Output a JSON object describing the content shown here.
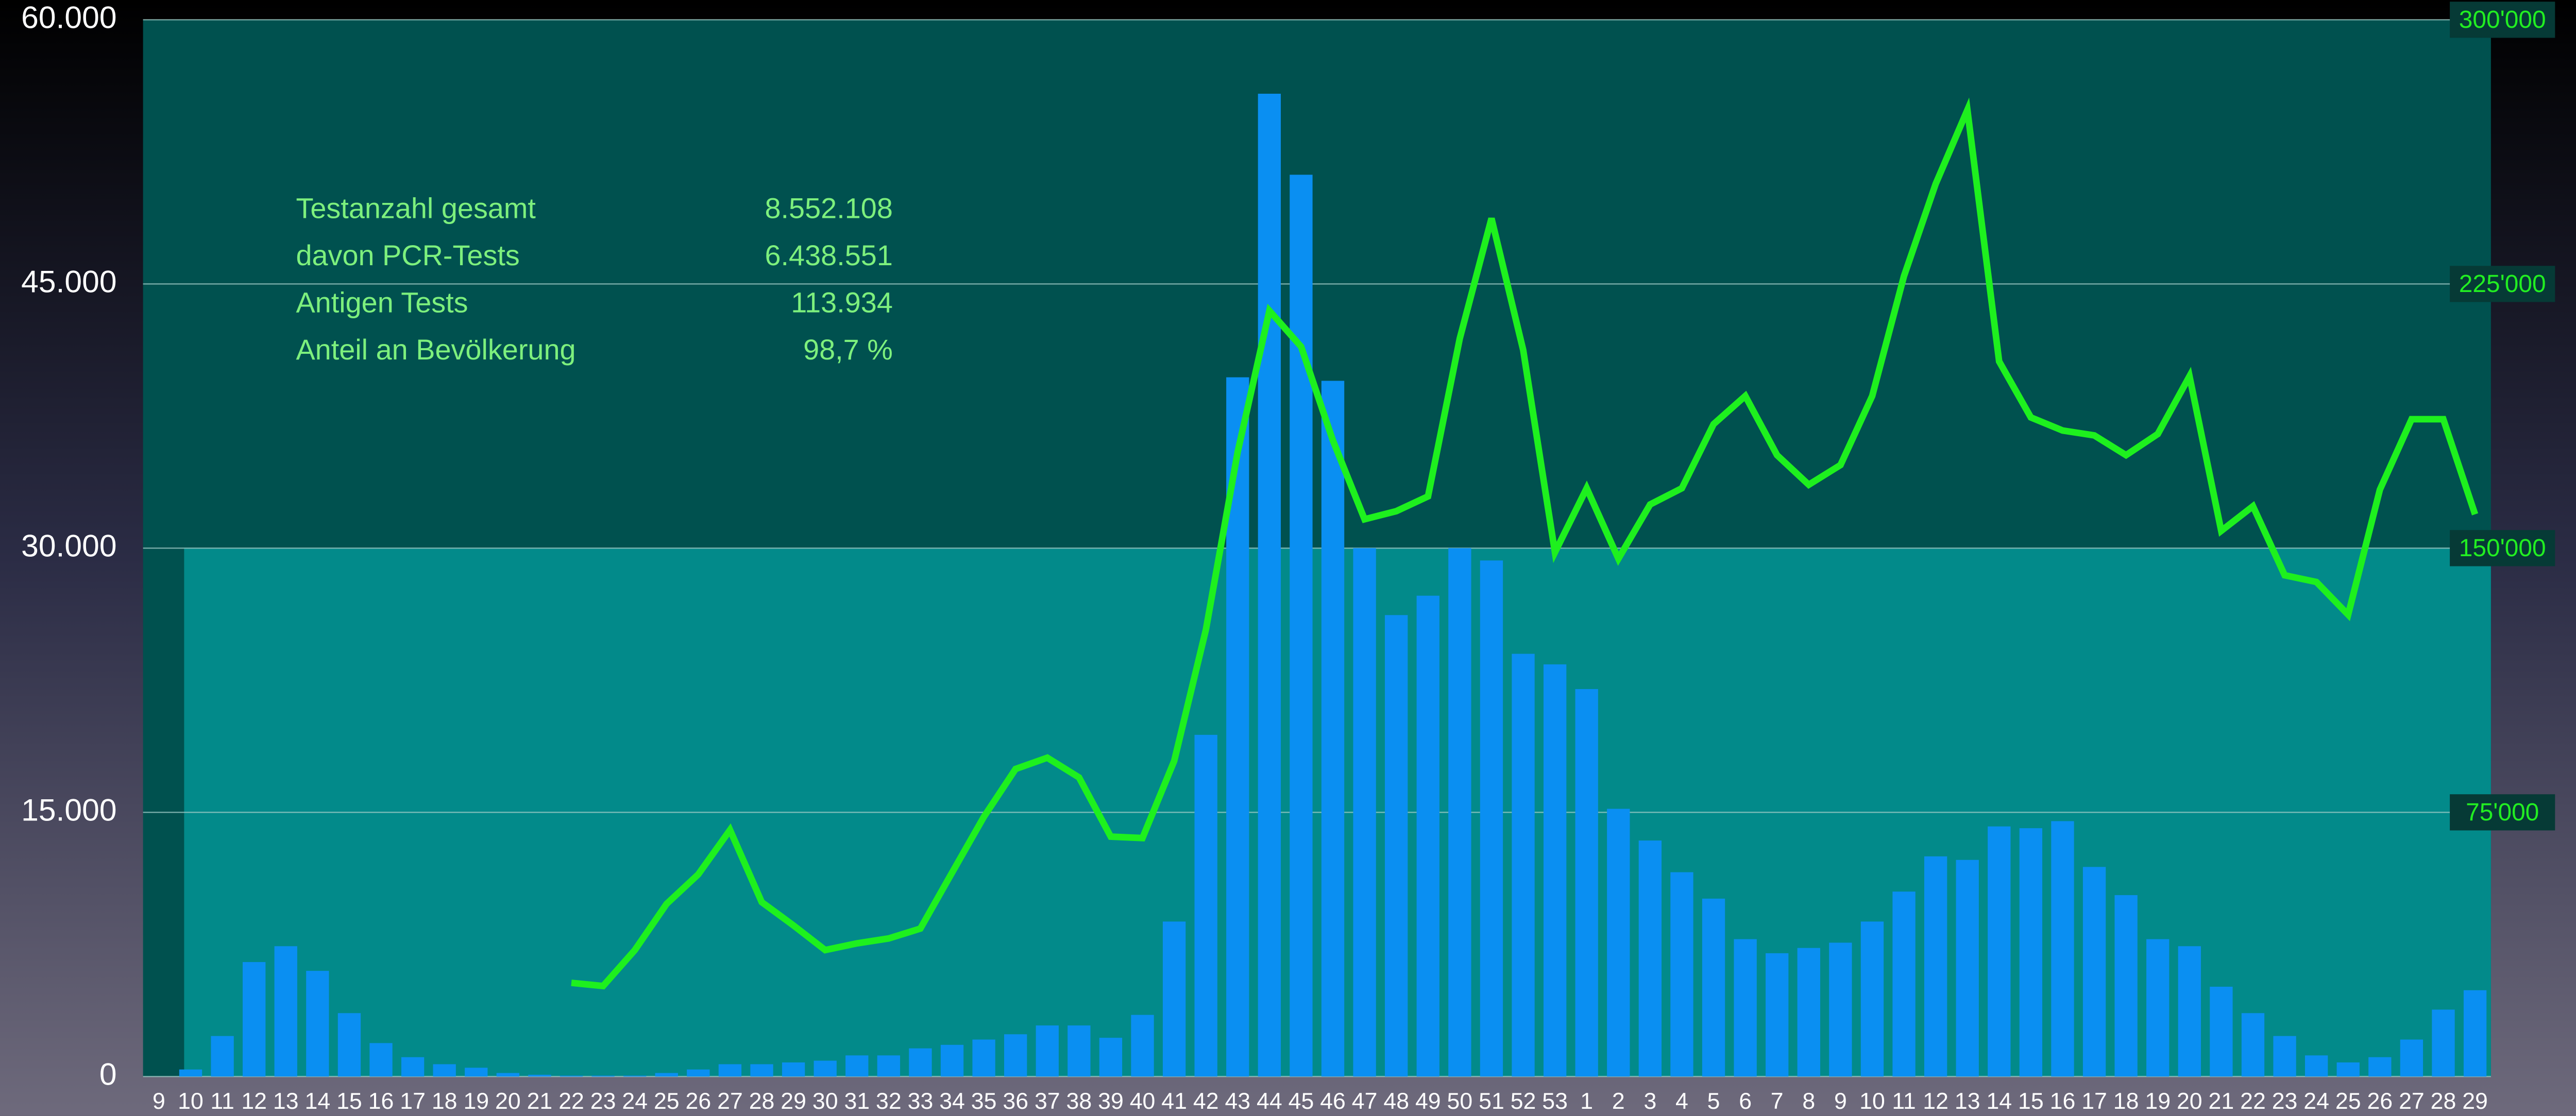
{
  "chart_data": {
    "type": "bar",
    "categories": [
      "9",
      "10",
      "11",
      "12",
      "13",
      "14",
      "15",
      "16",
      "17",
      "18",
      "19",
      "20",
      "21",
      "22",
      "23",
      "24",
      "25",
      "26",
      "27",
      "28",
      "29",
      "30",
      "31",
      "32",
      "33",
      "34",
      "35",
      "36",
      "37",
      "38",
      "39",
      "40",
      "41",
      "42",
      "43",
      "44",
      "45",
      "46",
      "47",
      "48",
      "49",
      "50",
      "51",
      "52",
      "53",
      "1",
      "2",
      "3",
      "4",
      "5",
      "6",
      "7",
      "8",
      "9",
      "10",
      "11",
      "12",
      "13",
      "14",
      "15",
      "16",
      "17",
      "18",
      "19",
      "20",
      "21",
      "22",
      "23",
      "24",
      "25",
      "26",
      "27",
      "28",
      "29"
    ],
    "series": [
      {
        "type": "bar",
        "color": "#0a8ff2",
        "values": [
          0,
          400,
          2300,
          6500,
          7400,
          6000,
          3600,
          1900,
          1100,
          700,
          500,
          200,
          100,
          50,
          50,
          50,
          200,
          400,
          700,
          700,
          800,
          900,
          1200,
          1200,
          1600,
          1800,
          2100,
          2400,
          2900,
          2900,
          2200,
          3500,
          8800,
          19400,
          39700,
          55800,
          51200,
          39500,
          30000,
          26200,
          27300,
          30000,
          29300,
          24000,
          23400,
          22000,
          15200,
          13400,
          11600,
          10100,
          7800,
          7000,
          7300,
          7600,
          8800,
          10500,
          12500,
          12300,
          14200,
          14100,
          14500,
          11900,
          10300,
          7800,
          7400,
          5100,
          3600,
          2300,
          1200,
          800,
          1100,
          2100,
          3800,
          4900
        ]
      },
      {
        "type": "line",
        "axis": "y2",
        "color": "#1ef01e",
        "values": [
          null,
          null,
          null,
          null,
          null,
          null,
          null,
          null,
          null,
          null,
          null,
          null,
          null,
          26600,
          25700,
          35900,
          49000,
          57400,
          70000,
          49500,
          42900,
          35900,
          37800,
          39200,
          42000,
          57900,
          73700,
          87300,
          90500,
          84900,
          68100,
          67700,
          89600,
          126900,
          177300,
          217400,
          207200,
          180600,
          158200,
          160500,
          164700,
          209500,
          243600,
          206200,
          148800,
          167000,
          147000,
          162400,
          167000,
          185200,
          193200,
          176400,
          168000,
          173600,
          193200,
          227200,
          253400,
          274400,
          203000,
          187100,
          183400,
          182000,
          176400,
          182400,
          198800,
          154900,
          161900,
          142300,
          140400,
          131100,
          166600,
          186600,
          186600,
          159600
        ]
      }
    ],
    "ylim": [
      0,
      60000
    ],
    "yticks": [
      0,
      {
        "value": 15000,
        "label": "15.000"
      },
      {
        "value": 30000,
        "label": "30.000"
      },
      {
        "value": 45000,
        "label": "45.000"
      },
      {
        "value": 60000,
        "label": "60.000"
      }
    ],
    "y2lim": [
      0,
      300000
    ],
    "y2ticks": [
      {
        "value": 75000,
        "label": "75'000"
      },
      {
        "value": 150000,
        "label": "150'000"
      },
      {
        "value": 225000,
        "label": "225'000"
      },
      {
        "value": 300000,
        "label": "300'000"
      }
    ],
    "grid": true,
    "stats": [
      {
        "label": "Testanzahl gesamt",
        "value": "8.552.108"
      },
      {
        "label": "davon PCR-Tests",
        "value": "6.438.551"
      },
      {
        "label": "Antigen Tests",
        "value": "113.934"
      },
      {
        "label": "Anteil an Bevölkerung",
        "value": "98,7 %"
      }
    ]
  }
}
